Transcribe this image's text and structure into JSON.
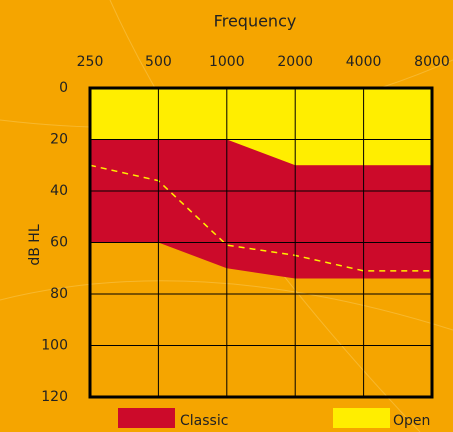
{
  "chart_data": {
    "type": "area",
    "xlabel": "Frequency",
    "ylabel": "dB HL",
    "x": [
      250,
      500,
      1000,
      2000,
      4000,
      8000
    ],
    "xlim": [
      250,
      8000
    ],
    "xticks": [
      250,
      500,
      1000,
      2000,
      4000,
      8000
    ],
    "xscale": "log",
    "ylim": [
      0,
      120
    ],
    "yticks": [
      0,
      20,
      40,
      60,
      80,
      100,
      120
    ],
    "y_inverted": true,
    "grid": true,
    "series": [
      {
        "name": "Classic",
        "color": "#cc0a2a",
        "values": [
          20,
          20,
          20,
          30,
          30,
          30
        ],
        "values_lower": [
          60,
          60,
          70,
          74,
          74,
          74
        ]
      },
      {
        "name": "Open",
        "color": "#ffee00",
        "values": [
          0,
          0,
          0,
          0,
          0,
          0
        ],
        "values_lower": [
          20,
          20,
          20,
          30,
          30,
          30
        ]
      },
      {
        "color": "#ffee00",
        "style": "dashed",
        "values": [
          30,
          36,
          61,
          65,
          71,
          71
        ]
      }
    ]
  }
}
